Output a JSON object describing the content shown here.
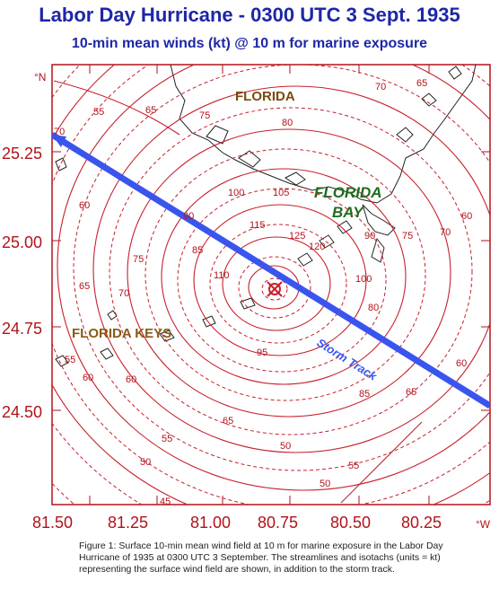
{
  "title": "Labor Day Hurricane - 0300 UTC 3 Sept. 1935",
  "subtitle": "10-min mean winds (kt) @ 10 m for marine exposure",
  "axes": {
    "y_ticks": [
      "25.25",
      "25.00",
      "24.75",
      "24.50"
    ],
    "x_ticks": [
      "81.50",
      "81.25",
      "81.00",
      "80.75",
      "80.50",
      "80.25"
    ],
    "y_unit": "°N",
    "x_unit": "°W"
  },
  "places": {
    "florida": "FLORIDA",
    "florida_bay_1": "FLORIDA",
    "florida_bay_2": "BAY",
    "florida_keys": "FLORIDA KEYS",
    "storm_track": "Storm Track"
  },
  "isotach_labels": [
    "45",
    "50",
    "55",
    "60",
    "65",
    "70",
    "75",
    "80",
    "85",
    "90",
    "95",
    "100",
    "105",
    "110",
    "115",
    "120",
    "125",
    "55",
    "60",
    "65",
    "70",
    "75",
    "80",
    "85",
    "90",
    "100",
    "65",
    "70",
    "75",
    "60",
    "65",
    "55",
    "50",
    "70",
    "60",
    "50",
    "65",
    "55",
    "60"
  ],
  "colors": {
    "title": "#1d27a6",
    "frame": "#b2121a",
    "contours": "#c81f2c",
    "coast": "#222222",
    "track": "#3a55ee",
    "florida_label": "#7a4a10",
    "florida_bay_label": "#1f6b1f",
    "florida_keys_label": "#8a5a12",
    "storm_track_label": "#3a55ee"
  },
  "caption": "Figure 1:  Surface 10-min mean wind field at 10 m for marine exposure in the Labor Day Hurricane of 1935 at 0300 UTC 3 September. The streamlines and isotachs (units = kt) representing the surface wind field are shown, in addition to the storm track."
}
